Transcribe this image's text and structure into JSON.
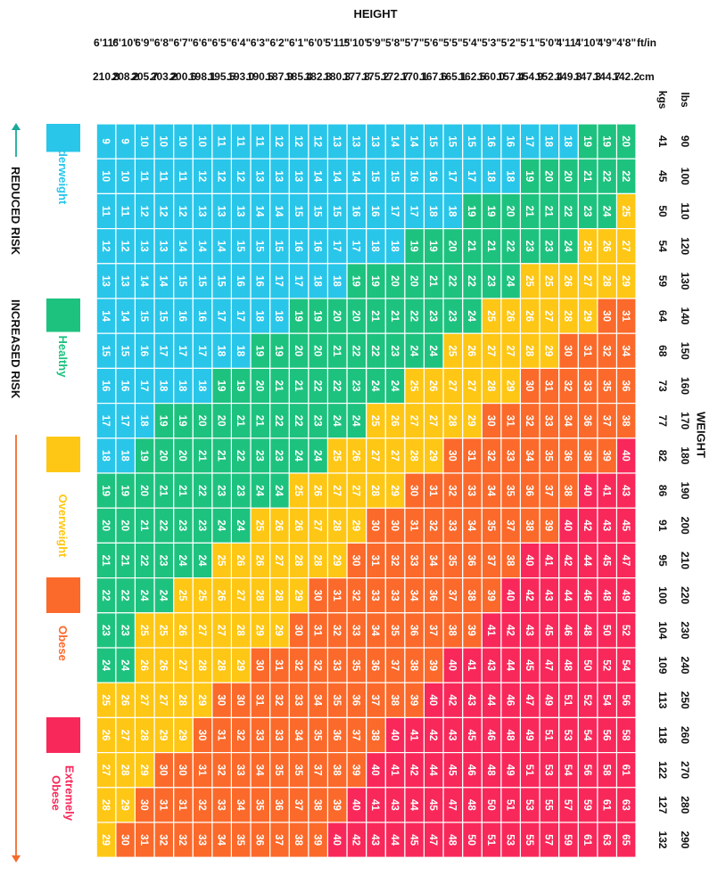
{
  "chart_data": {
    "type": "heatmap",
    "title": "",
    "weight_axis_label": "WEIGHT",
    "height_axis_label": "HEIGHT",
    "weight_units": [
      "lbs",
      "kgs"
    ],
    "height_units": [
      "ft/in",
      "cm"
    ],
    "weight_lbs": [
      "90",
      "100",
      "110",
      "120",
      "130",
      "140",
      "150",
      "160",
      "170",
      "180",
      "190",
      "200",
      "210",
      "220",
      "230",
      "240",
      "250",
      "260",
      "270",
      "280",
      "290"
    ],
    "weight_kgs": [
      "41",
      "45",
      "50",
      "54",
      "59",
      "64",
      "68",
      "73",
      "77",
      "82",
      "86",
      "91",
      "95",
      "100",
      "104",
      "109",
      "113",
      "118",
      "122",
      "127",
      "132"
    ],
    "heights_ftin": [
      "4'8\"",
      "4'9\"",
      "4'10\"",
      "4'11\"",
      "5'0\"",
      "5'1\"",
      "5'2\"",
      "5'3\"",
      "5'4\"",
      "5'5\"",
      "5'6\"",
      "5'7\"",
      "5'8\"",
      "5'9\"",
      "5'10\"",
      "5'11\"",
      "6'0\"",
      "6'1\"",
      "6'2\"",
      "6'3\"",
      "6'4\"",
      "6'5\"",
      "6'6\"",
      "6'7\"",
      "6'8\"",
      "6'9\"",
      "6'10\"",
      "6'11\""
    ],
    "heights_cm": [
      "142.2",
      "144.7",
      "147.3",
      "149.8",
      "152.4",
      "154.9",
      "157.4",
      "160.0",
      "162.5",
      "165.1",
      "167.6",
      "170.1",
      "172.7",
      "175.2",
      "177.8",
      "180.3",
      "182.8",
      "185.4",
      "187.9",
      "190.5",
      "193.0",
      "195.5",
      "198.1",
      "200.6",
      "203.2",
      "205.7",
      "208.2",
      "210.8"
    ],
    "bmi": [
      [
        20,
        22,
        25,
        27,
        29,
        31,
        34,
        36,
        38,
        40,
        43,
        45,
        47,
        49,
        52,
        54,
        56,
        58,
        61,
        63,
        65
      ],
      [
        19,
        22,
        24,
        26,
        28,
        30,
        32,
        35,
        37,
        39,
        41,
        43,
        45,
        48,
        50,
        52,
        54,
        56,
        58,
        61,
        63
      ],
      [
        19,
        21,
        23,
        25,
        27,
        29,
        31,
        33,
        36,
        38,
        40,
        42,
        44,
        46,
        48,
        50,
        52,
        54,
        56,
        59,
        61
      ],
      [
        18,
        20,
        22,
        24,
        26,
        28,
        30,
        32,
        34,
        36,
        38,
        40,
        42,
        44,
        46,
        48,
        51,
        53,
        54,
        57,
        59
      ],
      [
        18,
        20,
        21,
        23,
        25,
        27,
        29,
        31,
        33,
        35,
        37,
        39,
        41,
        43,
        45,
        47,
        49,
        51,
        53,
        55,
        57
      ],
      [
        17,
        19,
        21,
        23,
        25,
        26,
        28,
        30,
        32,
        34,
        36,
        38,
        40,
        42,
        43,
        45,
        47,
        49,
        51,
        53,
        55
      ],
      [
        16,
        18,
        20,
        22,
        24,
        26,
        27,
        29,
        31,
        33,
        35,
        37,
        38,
        40,
        42,
        44,
        46,
        48,
        49,
        51,
        53
      ],
      [
        16,
        18,
        19,
        21,
        23,
        25,
        27,
        28,
        30,
        32,
        34,
        35,
        37,
        39,
        41,
        43,
        44,
        46,
        48,
        50,
        51
      ],
      [
        15,
        17,
        19,
        21,
        22,
        24,
        26,
        27,
        29,
        31,
        33,
        34,
        36,
        38,
        39,
        41,
        43,
        45,
        46,
        48,
        50
      ],
      [
        15,
        17,
        18,
        20,
        22,
        23,
        25,
        27,
        28,
        30,
        32,
        33,
        35,
        37,
        38,
        40,
        42,
        43,
        45,
        47,
        48
      ],
      [
        15,
        16,
        18,
        19,
        21,
        23,
        24,
        26,
        27,
        29,
        31,
        32,
        34,
        36,
        37,
        39,
        40,
        42,
        44,
        45,
        47
      ],
      [
        14,
        16,
        17,
        19,
        20,
        22,
        24,
        25,
        27,
        28,
        30,
        31,
        33,
        34,
        36,
        38,
        39,
        41,
        42,
        44,
        45
      ],
      [
        14,
        15,
        17,
        18,
        20,
        21,
        23,
        24,
        26,
        27,
        29,
        30,
        32,
        33,
        35,
        37,
        38,
        40,
        41,
        43,
        44
      ],
      [
        13,
        15,
        16,
        18,
        19,
        21,
        22,
        24,
        25,
        27,
        28,
        30,
        31,
        33,
        34,
        36,
        37,
        38,
        40,
        41,
        43
      ],
      [
        13,
        14,
        16,
        17,
        19,
        20,
        22,
        23,
        24,
        26,
        27,
        29,
        30,
        32,
        33,
        35,
        36,
        37,
        39,
        40,
        42
      ],
      [
        13,
        14,
        15,
        17,
        18,
        20,
        21,
        22,
        24,
        25,
        27,
        28,
        29,
        31,
        32,
        33,
        35,
        36,
        38,
        39,
        40
      ],
      [
        12,
        14,
        15,
        16,
        18,
        19,
        20,
        22,
        23,
        24,
        26,
        27,
        28,
        30,
        31,
        32,
        34,
        35,
        37,
        38,
        39
      ],
      [
        12,
        13,
        15,
        16,
        17,
        19,
        20,
        21,
        22,
        24,
        25,
        26,
        28,
        29,
        30,
        32,
        33,
        34,
        35,
        37,
        38
      ],
      [
        12,
        13,
        14,
        15,
        17,
        18,
        19,
        21,
        22,
        23,
        24,
        26,
        27,
        28,
        29,
        31,
        32,
        33,
        35,
        36,
        37
      ],
      [
        11,
        13,
        14,
        15,
        16,
        18,
        19,
        20,
        21,
        23,
        24,
        25,
        26,
        28,
        29,
        30,
        31,
        33,
        34,
        35,
        36
      ],
      [
        11,
        12,
        13,
        15,
        16,
        17,
        18,
        19,
        21,
        22,
        23,
        24,
        26,
        27,
        28,
        29,
        30,
        32,
        33,
        34,
        35
      ],
      [
        11,
        12,
        13,
        14,
        15,
        17,
        18,
        19,
        20,
        21,
        23,
        24,
        25,
        26,
        27,
        28,
        30,
        31,
        32,
        33,
        34
      ],
      [
        10,
        12,
        13,
        14,
        15,
        16,
        17,
        18,
        20,
        21,
        22,
        23,
        24,
        25,
        27,
        28,
        29,
        30,
        31,
        32,
        33
      ],
      [
        10,
        11,
        12,
        14,
        15,
        16,
        17,
        18,
        19,
        20,
        21,
        23,
        24,
        25,
        26,
        27,
        28,
        29,
        30,
        31,
        32
      ],
      [
        10,
        11,
        12,
        13,
        14,
        15,
        17,
        18,
        19,
        20,
        21,
        22,
        23,
        24,
        25,
        26,
        27,
        29,
        30,
        31,
        32
      ],
      [
        10,
        11,
        12,
        13,
        14,
        15,
        16,
        17,
        18,
        19,
        20,
        21,
        22,
        24,
        25,
        26,
        27,
        28,
        29,
        30,
        31
      ],
      [
        9,
        10,
        11,
        12,
        13,
        14,
        15,
        16,
        17,
        18,
        19,
        20,
        21,
        22,
        23,
        24,
        26,
        27,
        28,
        29,
        30
      ],
      [
        9,
        10,
        11,
        12,
        13,
        14,
        15,
        16,
        17,
        18,
        19,
        20,
        21,
        22,
        23,
        24,
        25,
        26,
        27,
        28,
        29
      ]
    ],
    "categories": [
      {
        "label": "Underweight",
        "color": "#29c6ea",
        "max_bmi": 18
      },
      {
        "label": "Healthy",
        "color": "#1ec27f",
        "max_bmi": 24
      },
      {
        "label": "Overweight",
        "color": "#fec715",
        "max_bmi": 29
      },
      {
        "label": "Obese",
        "color": "#fb6a2b",
        "max_bmi": 39
      },
      {
        "label": "Extremely\nObese",
        "color": "#f9285a",
        "max_bmi": 99
      }
    ],
    "risk_labels": {
      "reduced": "REDUCED RISK",
      "increased": "INCREASED RISK"
    },
    "arrow_colors": {
      "reduced": "#1aa99a",
      "increased": "#f56a2e"
    }
  }
}
